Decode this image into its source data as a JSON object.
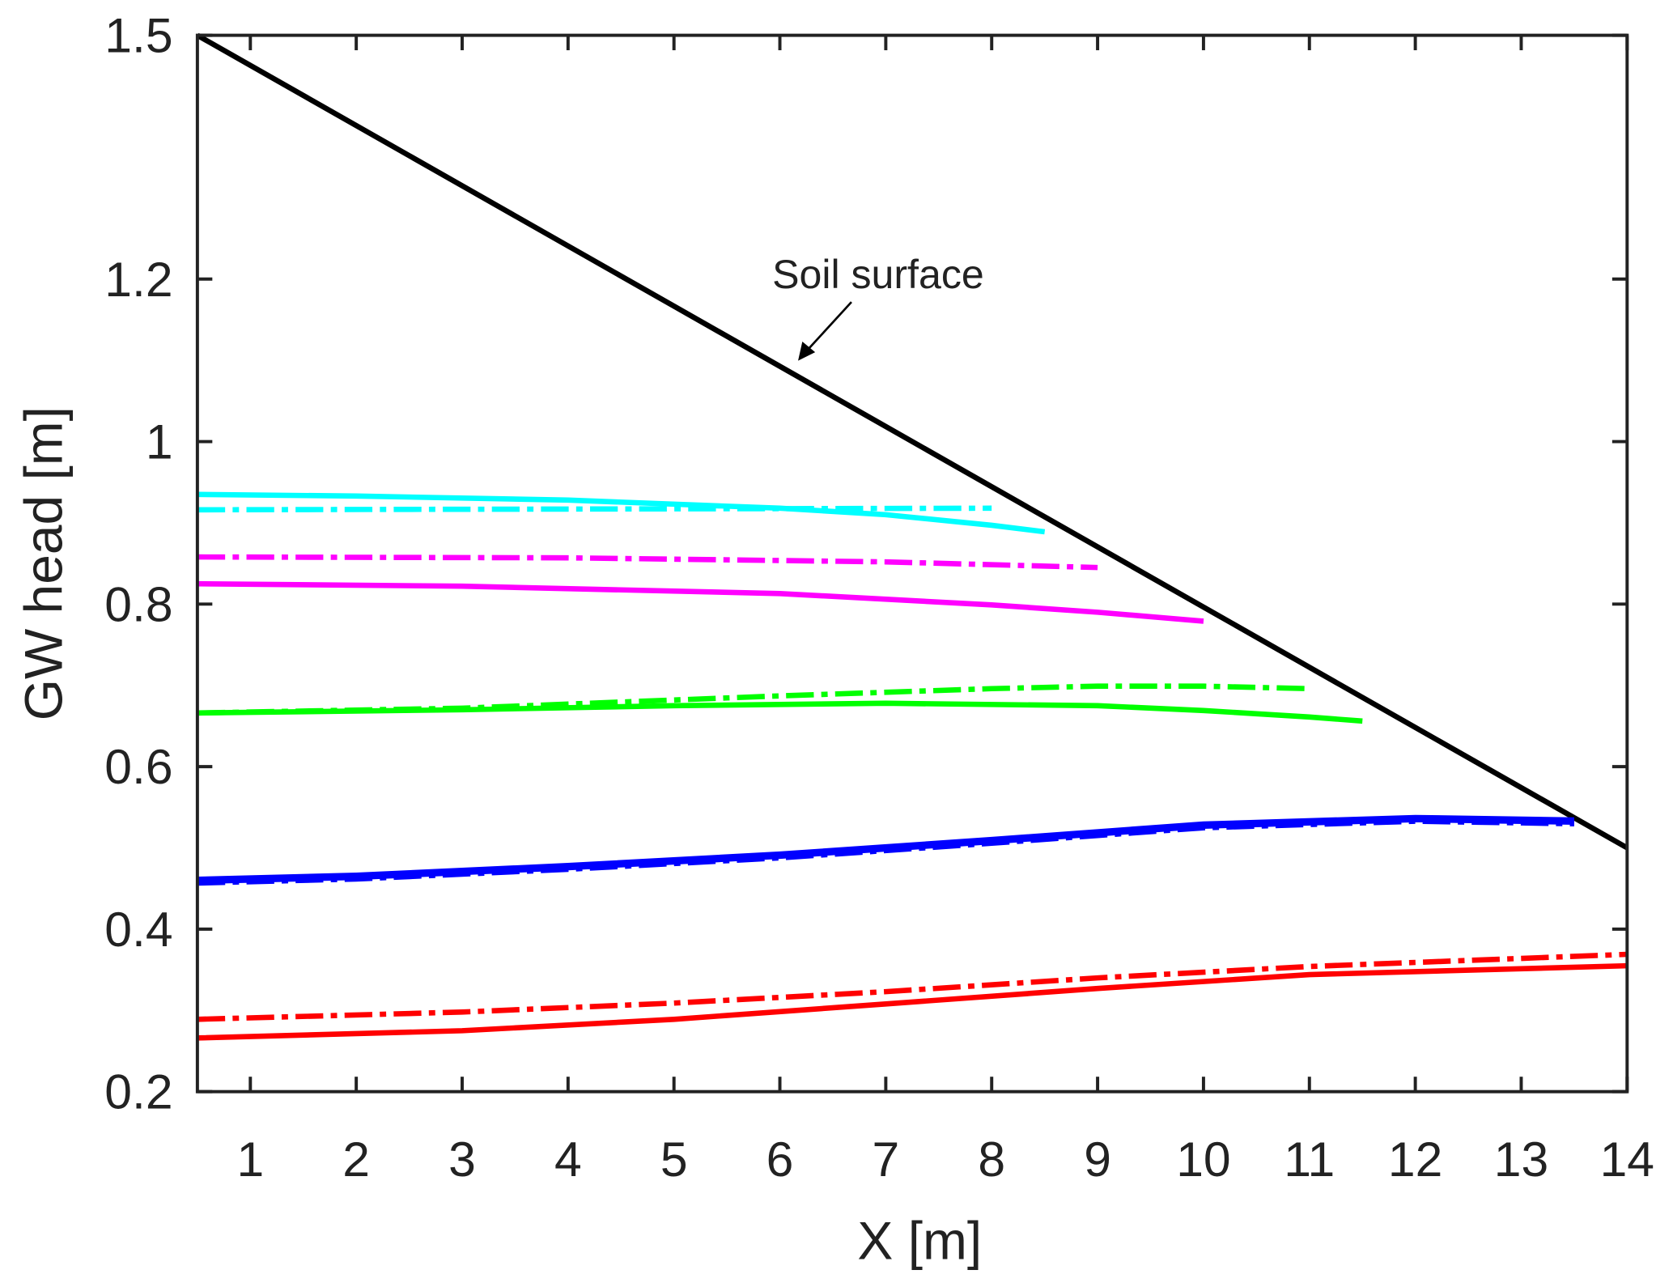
{
  "chart_data": {
    "type": "line",
    "title": "",
    "xlabel": "X [m]",
    "ylabel": "GW head [m]",
    "xlim": [
      0.5,
      14
    ],
    "ylim": [
      0.2,
      1.5
    ],
    "xticks": [
      1,
      2,
      3,
      4,
      5,
      6,
      7,
      8,
      9,
      10,
      11,
      12,
      13,
      14
    ],
    "yticks": [
      1.5,
      1.2,
      1,
      0.8,
      0.6,
      0.4,
      0.2
    ],
    "ytick_labels": [
      "1.5",
      "1.2",
      "1",
      "0.8",
      "0.6",
      "0.4",
      "0.2"
    ],
    "grid": false,
    "legend": "none",
    "annotation": {
      "text": "Soil surface",
      "points_to": [
        6.2,
        1.11
      ]
    },
    "series": [
      {
        "color": "#000000",
        "style": "solid",
        "x": [
          0.5,
          14
        ],
        "y": [
          1.5,
          0.5
        ]
      },
      {
        "color": "#00ffff",
        "style": "solid",
        "x": [
          0.5,
          2,
          4,
          6,
          7,
          8,
          8.5
        ],
        "y": [
          0.935,
          0.933,
          0.928,
          0.918,
          0.91,
          0.897,
          0.889
        ]
      },
      {
        "color": "#00ffff",
        "style": "dashdot",
        "x": [
          0.5,
          4,
          8
        ],
        "y": [
          0.916,
          0.917,
          0.918
        ]
      },
      {
        "color": "#ff00ff",
        "style": "dashdot",
        "x": [
          0.5,
          4,
          7,
          9
        ],
        "y": [
          0.858,
          0.857,
          0.852,
          0.845
        ]
      },
      {
        "color": "#ff00ff",
        "style": "solid",
        "x": [
          0.5,
          3,
          6,
          8,
          9,
          10
        ],
        "y": [
          0.825,
          0.822,
          0.813,
          0.799,
          0.79,
          0.779
        ]
      },
      {
        "color": "#00ff00",
        "style": "solid",
        "x": [
          0.5,
          3,
          5,
          7,
          9,
          10,
          11,
          11.5
        ],
        "y": [
          0.666,
          0.67,
          0.675,
          0.678,
          0.675,
          0.669,
          0.661,
          0.656
        ]
      },
      {
        "color": "#00ff00",
        "style": "dashdot",
        "x": [
          0.5,
          3,
          6,
          8,
          9,
          10,
          11
        ],
        "y": [
          0.666,
          0.672,
          0.687,
          0.696,
          0.699,
          0.699,
          0.696
        ]
      },
      {
        "color": "#0000ff",
        "style": "solid",
        "x": [
          0.5,
          2,
          4,
          6,
          8,
          10,
          12,
          13.5
        ],
        "y": [
          0.46,
          0.465,
          0.477,
          0.491,
          0.509,
          0.528,
          0.536,
          0.533
        ]
      },
      {
        "color": "#0000ff",
        "style": "dashdot",
        "x": [
          0.5,
          2,
          4,
          6,
          8,
          10,
          12,
          13.5
        ],
        "y": [
          0.458,
          0.463,
          0.475,
          0.489,
          0.507,
          0.526,
          0.534,
          0.531
        ]
      },
      {
        "color": "#ff0000",
        "style": "solid",
        "x": [
          0.5,
          3,
          5,
          7,
          9,
          11,
          14
        ],
        "y": [
          0.266,
          0.275,
          0.289,
          0.308,
          0.327,
          0.344,
          0.355
        ]
      },
      {
        "color": "#ff0000",
        "style": "dashdot",
        "x": [
          0.5,
          3,
          5,
          7,
          9,
          11,
          14
        ],
        "y": [
          0.289,
          0.298,
          0.309,
          0.323,
          0.34,
          0.354,
          0.369
        ]
      }
    ]
  }
}
